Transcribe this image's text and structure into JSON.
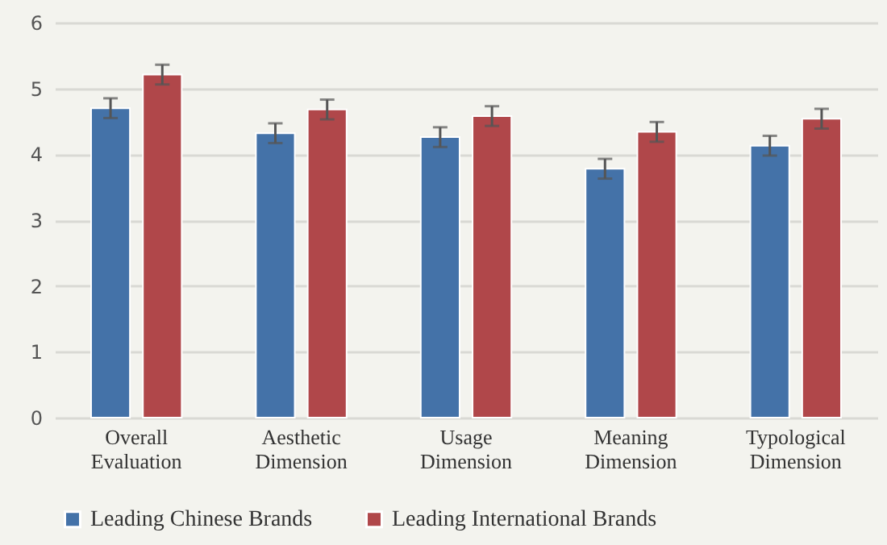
{
  "chart_data": {
    "type": "bar",
    "categories": [
      "Overall Evaluation",
      "Aesthetic Dimension",
      "Usage Dimension",
      "Meaning Dimension",
      "Typological Dimension"
    ],
    "series": [
      {
        "name": "Leading Chinese Brands",
        "color": "#4472a8",
        "values": [
          4.7,
          4.32,
          4.26,
          3.78,
          4.13
        ],
        "errors": [
          0.15,
          0.15,
          0.15,
          0.15,
          0.15
        ]
      },
      {
        "name": "Leading International Brands",
        "color": "#b0474a",
        "values": [
          5.21,
          4.68,
          4.58,
          4.34,
          4.54
        ],
        "errors": [
          0.15,
          0.15,
          0.15,
          0.15,
          0.15
        ]
      }
    ],
    "ylim": [
      0,
      6
    ],
    "yticks": [
      0,
      1,
      2,
      3,
      4,
      5,
      6
    ],
    "grid": "y",
    "legend": "bottom"
  }
}
